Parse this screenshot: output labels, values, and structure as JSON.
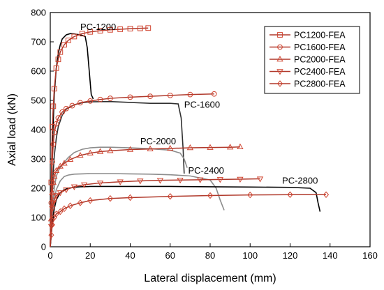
{
  "chart_data": {
    "type": "line",
    "xlabel": "Lateral displacement (mm)",
    "ylabel": "Axial load (kN)",
    "xlim": [
      0,
      160
    ],
    "ylim": [
      0,
      800
    ],
    "xticks": [
      0,
      20,
      40,
      60,
      80,
      100,
      120,
      140,
      160
    ],
    "yticks": [
      0,
      100,
      200,
      300,
      400,
      500,
      600,
      700,
      800
    ],
    "grid": false,
    "legend_position": "top-right",
    "colors": {
      "fea": "#b0392b",
      "marker": "#d0442f",
      "pc1200_test": "#000000",
      "pc1600_test": "#303030",
      "pc2000_test": "#8c8c8c",
      "pc2400_test": "#8c8c8c",
      "pc2800_test": "#000000"
    },
    "annotations": [
      {
        "text": "PC-1200",
        "x": 15,
        "y": 740
      },
      {
        "text": "PC-1600",
        "x": 67,
        "y": 475
      },
      {
        "text": "PC-2000",
        "x": 45,
        "y": 350
      },
      {
        "text": "PC-2400",
        "x": 69,
        "y": 250
      },
      {
        "text": "PC-2800",
        "x": 116,
        "y": 215
      }
    ],
    "series": [
      {
        "name": "PC1200-FEA",
        "marker": "square",
        "kind": "fea",
        "x": [
          0,
          0.5,
          1,
          1.5,
          2,
          3,
          4,
          5,
          7,
          9,
          12,
          16,
          20,
          25,
          30,
          35,
          40,
          45,
          49
        ],
        "y": [
          0,
          220,
          410,
          480,
          540,
          610,
          640,
          665,
          690,
          705,
          718,
          728,
          734,
          738,
          741,
          743,
          745,
          746,
          747
        ]
      },
      {
        "name": "PC1600-FEA",
        "marker": "circle",
        "kind": "fea",
        "x": [
          0,
          0.5,
          1,
          1.5,
          2,
          3,
          4,
          6,
          8,
          11,
          15,
          20,
          25,
          30,
          40,
          50,
          60,
          70,
          82
        ],
        "y": [
          0,
          150,
          290,
          350,
          390,
          420,
          440,
          460,
          472,
          482,
          492,
          498,
          503,
          507,
          511,
          514,
          517,
          520,
          522
        ]
      },
      {
        "name": "PC2000-FEA",
        "marker": "triangle-up",
        "kind": "fea",
        "x": [
          0,
          0.5,
          1,
          1.5,
          2,
          3,
          5,
          7,
          10,
          15,
          20,
          25,
          30,
          40,
          50,
          60,
          70,
          80,
          90,
          95
        ],
        "y": [
          0,
          95,
          185,
          220,
          240,
          260,
          275,
          285,
          298,
          312,
          320,
          325,
          328,
          332,
          334,
          336,
          338,
          339,
          340,
          341
        ]
      },
      {
        "name": "PC2400-FEA",
        "marker": "triangle-down",
        "kind": "fea",
        "x": [
          0,
          0.5,
          1,
          1.5,
          2,
          3,
          5,
          8,
          12,
          17,
          25,
          35,
          45,
          55,
          65,
          75,
          85,
          95,
          105
        ],
        "y": [
          0,
          70,
          130,
          150,
          160,
          175,
          185,
          195,
          205,
          212,
          218,
          222,
          225,
          227,
          228,
          229,
          230,
          231,
          232
        ]
      },
      {
        "name": "PC2800-FEA",
        "marker": "diamond",
        "kind": "fea",
        "x": [
          0,
          0.5,
          1,
          2,
          3,
          5,
          7,
          10,
          15,
          20,
          30,
          40,
          60,
          80,
          100,
          120,
          138
        ],
        "y": [
          0,
          40,
          75,
          100,
          112,
          120,
          130,
          140,
          150,
          158,
          165,
          168,
          172,
          175,
          177,
          178,
          178
        ]
      },
      {
        "name": "PC-1200 test",
        "kind": "test",
        "x": [
          0,
          0.5,
          1,
          2,
          3,
          4,
          5,
          6,
          8,
          10,
          12,
          14,
          16,
          17.5,
          18.5,
          19.5,
          20.5,
          21.5
        ],
        "y": [
          0,
          150,
          330,
          520,
          610,
          660,
          690,
          710,
          724,
          728,
          727,
          725,
          722,
          718,
          680,
          600,
          520,
          505
        ]
      },
      {
        "name": "PC-1600 test",
        "kind": "test",
        "x": [
          0,
          0.5,
          1,
          2,
          3,
          4,
          6,
          8,
          12,
          16,
          20,
          30,
          40,
          50,
          60,
          64,
          65.5,
          66.5,
          67
        ],
        "y": [
          0,
          100,
          200,
          310,
          370,
          410,
          450,
          470,
          485,
          492,
          495,
          496,
          493,
          490,
          490,
          488,
          440,
          330,
          250
        ]
      },
      {
        "name": "PC-2000 test",
        "kind": "test",
        "x": [
          0,
          0.5,
          1,
          2,
          3,
          4,
          6,
          9,
          12,
          16,
          20,
          25,
          30,
          40,
          50,
          60,
          65,
          67,
          68.5
        ],
        "y": [
          0,
          60,
          130,
          200,
          240,
          260,
          280,
          305,
          322,
          333,
          338,
          340,
          340,
          338,
          335,
          330,
          320,
          300,
          270
        ]
      },
      {
        "name": "PC-2400 test",
        "kind": "test",
        "x": [
          0,
          0.5,
          1,
          2,
          3,
          5,
          7,
          9,
          12,
          20,
          30,
          40,
          50,
          60,
          70,
          80,
          83,
          85,
          87
        ],
        "y": [
          0,
          50,
          100,
          160,
          195,
          225,
          240,
          245,
          248,
          250,
          250,
          249,
          248,
          246,
          242,
          228,
          200,
          160,
          125
        ]
      },
      {
        "name": "PC-2800 test",
        "kind": "test",
        "x": [
          0,
          0.5,
          1,
          2,
          3,
          5,
          7,
          9,
          12,
          15,
          20,
          30,
          40,
          60,
          80,
          100,
          120,
          130,
          133,
          134,
          135
        ],
        "y": [
          0,
          40,
          80,
          130,
          160,
          185,
          195,
          200,
          203,
          205,
          206,
          206,
          206,
          206,
          205,
          204,
          203,
          200,
          185,
          150,
          120
        ]
      }
    ]
  }
}
